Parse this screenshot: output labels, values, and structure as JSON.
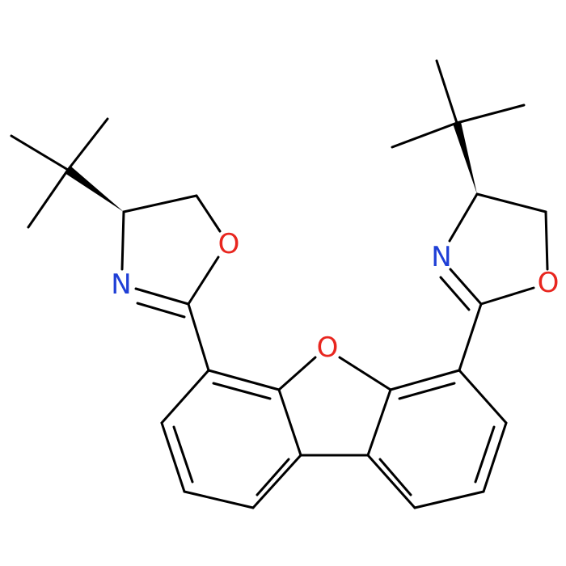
{
  "atoms": [
    {
      "label": "O"
    },
    {
      "label": "N"
    },
    {
      "label": "O"
    },
    {
      "label": "N"
    },
    {
      "label": "O"
    }
  ]
}
